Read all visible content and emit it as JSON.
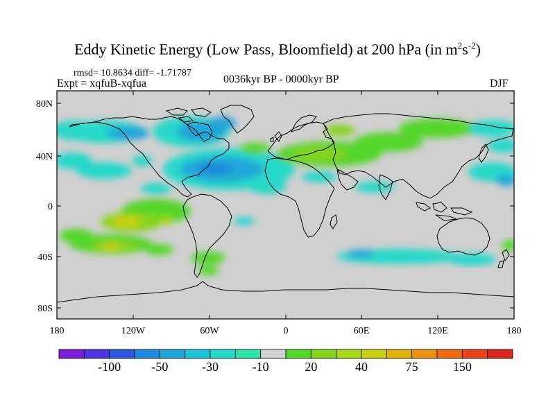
{
  "header": {
    "title_main": "Eddy Kinetic Energy (Low Pass, Bloomfield) at 200 hPa (in m",
    "title_sup1": "2",
    "title_mid": "s",
    "title_sup2": "-2",
    "title_end": ")",
    "rmsd": "rmsd= 10.8634 diff= -1.71787",
    "expt": "Expt = xqfuB-xqfua",
    "period": "0036kyr BP - 0000kyr BP",
    "season": "DJF"
  },
  "axes": {
    "lat_ticks": [
      "80N",
      "40N",
      "0",
      "40S",
      "80S"
    ],
    "lon_ticks": [
      "180",
      "120W",
      "60W",
      "0",
      "60E",
      "120E",
      "180"
    ]
  },
  "colorbar": {
    "colors": [
      "#7a1fd8",
      "#4f35e0",
      "#2f58dc",
      "#1f88dd",
      "#20a6d9",
      "#1fc1d9",
      "#25d8c9",
      "#2ee3aa",
      "#d0d0d0",
      "#54d62a",
      "#86d41e",
      "#a8d41a",
      "#c9cf12",
      "#e0b30f",
      "#eb9212",
      "#e96c12",
      "#e5441a",
      "#d8261a"
    ],
    "labels": [
      "-100",
      "-50",
      "-30",
      "-10",
      "20",
      "40",
      "75",
      "150"
    ]
  },
  "map_colors": {
    "background": "#d0d0d0",
    "coast": "#000000"
  }
}
